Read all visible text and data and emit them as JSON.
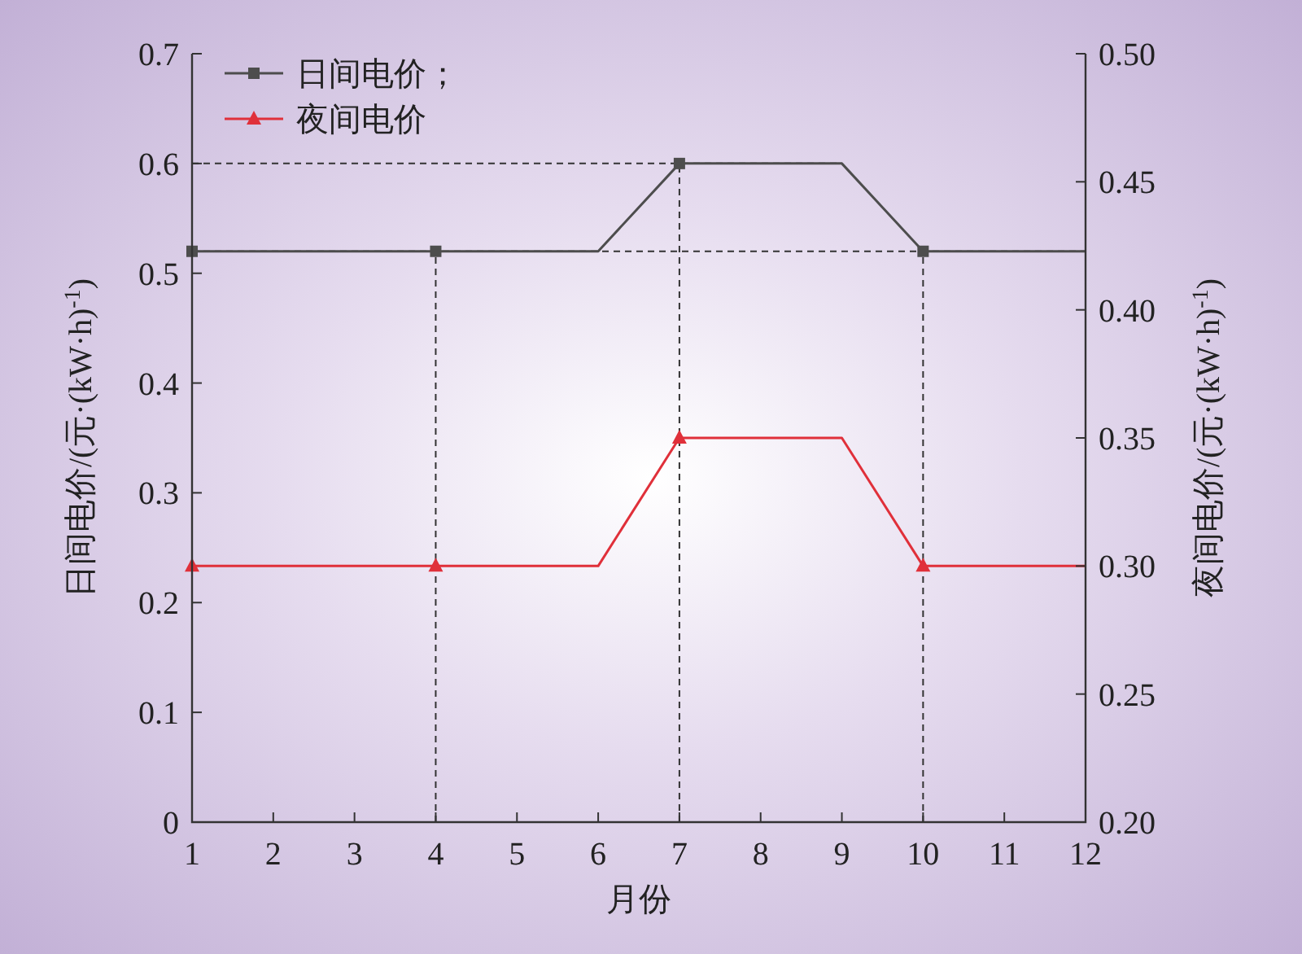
{
  "chart_data": {
    "type": "line",
    "xlabel": "月份",
    "ylabel": "日间电价/(元·(kW·h)$^{-1}$)",
    "y2label": "夜间电价/(元·(kW·h)$^{-1}$)",
    "xlim": [
      1,
      12
    ],
    "xticks": [
      1,
      2,
      3,
      4,
      5,
      6,
      7,
      8,
      9,
      10,
      11,
      12
    ],
    "ylim": [
      0,
      0.7
    ],
    "yticks": [
      0,
      0.1,
      0.2,
      0.3,
      0.4,
      0.5,
      0.6,
      0.7
    ],
    "y2lim": [
      0.2,
      0.5
    ],
    "y2ticks": [
      {
        "value": 0.2,
        "label": "0.20"
      },
      {
        "value": 0.25,
        "label": "0.25"
      },
      {
        "value": 0.3,
        "label": "0.30"
      },
      {
        "value": 0.35,
        "label": "0.35"
      },
      {
        "value": 0.4,
        "label": "0.40"
      },
      {
        "value": 0.45,
        "label": "0.45"
      },
      {
        "value": 0.5,
        "label": "0.50"
      }
    ],
    "legend": "top left",
    "grid": false,
    "line_style": "solid",
    "series": [
      {
        "type": "line",
        "color": "#4d4d4d",
        "marker": "none",
        "x": [
          1,
          6,
          7,
          9,
          10,
          12
        ],
        "values": [
          0.52,
          0.52,
          0.6,
          0.6,
          0.52,
          0.52
        ]
      },
      {
        "name": "日间电价；",
        "type": "scatter",
        "color": "#4d4d4d",
        "marker": "square",
        "x": [
          1,
          4,
          7,
          10
        ],
        "values": [
          0.52,
          0.52,
          0.6,
          0.52
        ]
      },
      {
        "type": "line",
        "axis": "y2",
        "color": "#e0303a",
        "marker": "none",
        "x": [
          1,
          6,
          7,
          9,
          10,
          12
        ],
        "values": [
          0.3,
          0.3,
          0.35,
          0.35,
          0.3,
          0.3
        ]
      },
      {
        "name": "夜间电价",
        "type": "scatter",
        "axis": "y2",
        "color": "#e0303a",
        "marker": "triangle",
        "x": [
          1,
          4,
          7,
          10
        ],
        "values": [
          0.3,
          0.3,
          0.35,
          0.3
        ]
      }
    ],
    "ref_lines": [
      {
        "axis": "x",
        "value": 4,
        "line_style": "dashed"
      },
      {
        "axis": "x",
        "value": 7,
        "line_style": "dashed"
      },
      {
        "axis": "x",
        "value": 10,
        "line_style": "dashed"
      },
      {
        "axis": "y",
        "value": 0.6,
        "line_style": "dashed"
      },
      {
        "axis": "y",
        "value": 0.52,
        "line_style": "dashed"
      }
    ]
  }
}
